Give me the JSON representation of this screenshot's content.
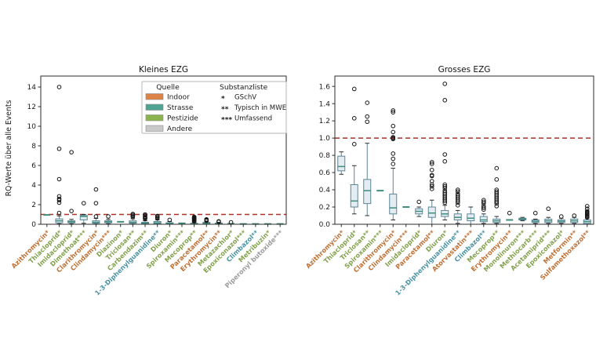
{
  "figure": {
    "background": "#ffffff"
  },
  "ylabel": "RQ-Werte über alle Events",
  "colors": {
    "refline": "#ab3226",
    "box_edge": "#5d8497",
    "box_fill": "#e3edf1",
    "box_median": "#3e8d7d",
    "outlier": "#161616",
    "axis": "#2b2b2b",
    "label_colors": {
      "indoor": "#bf7034",
      "strasse": "#4a93a3",
      "pestizide": "#83a14c",
      "andere": "#9b9b9b"
    }
  },
  "legend": {
    "quelle_title": "Quelle",
    "quelle_items": [
      {
        "label": "Indoor",
        "color": "#de8347",
        "source": "indoor"
      },
      {
        "label": "Strasse",
        "color": "#4fa392",
        "source": "strasse"
      },
      {
        "label": "Pestizide",
        "color": "#8bb44f",
        "source": "pestizide"
      },
      {
        "label": "Andere",
        "color": "#c9c9c9",
        "source": "andere"
      }
    ],
    "substanz_title": "Substanzliste",
    "substanz_items": [
      {
        "symbol": "*",
        "label": "GSchV"
      },
      {
        "symbol": "**",
        "label": "Typisch in MWE"
      },
      {
        "symbol": "***",
        "label": "Umfassend"
      }
    ]
  },
  "chart_data": [
    {
      "type": "box",
      "title": "Kleines EZG",
      "ylabel": "RQ-Werte über alle Events",
      "ylim": [
        0,
        15.12
      ],
      "yticks": [
        0,
        2,
        4,
        6,
        8,
        10,
        12,
        14
      ],
      "ytick_decimals": 0,
      "refline": 1.0,
      "grid": false,
      "items": [
        {
          "label": "Azithromycin*",
          "source": "indoor",
          "flat": 0.95,
          "outliers": []
        },
        {
          "label": "Thiacloprid*",
          "source": "pestizide",
          "box": {
            "lo": 0.05,
            "q1": 0.15,
            "med": 0.35,
            "q3": 0.55,
            "hi": 0.85
          },
          "outliers": [
            1.15,
            2.2,
            2.45,
            2.6,
            2.85,
            4.6,
            7.7,
            14.0
          ]
        },
        {
          "label": "Imidacloprid*",
          "source": "pestizide",
          "box": {
            "lo": 0.05,
            "q1": 0.15,
            "med": 0.25,
            "q3": 0.35,
            "hi": 0.5
          },
          "outliers": [
            1.35,
            7.35
          ]
        },
        {
          "label": "Dimethoat***",
          "source": "pestizide",
          "box": {
            "lo": 0.1,
            "q1": 0.45,
            "med": 0.8,
            "q3": 0.9,
            "hi": 1.0
          },
          "outliers": [
            2.15
          ]
        },
        {
          "label": "Clarithromycin*",
          "source": "indoor",
          "box": {
            "lo": 0.03,
            "q1": 0.1,
            "med": 0.2,
            "q3": 0.35,
            "hi": 0.6
          },
          "outliers": [
            0.8,
            2.15,
            3.55
          ]
        },
        {
          "label": "Clindamycin***",
          "source": "indoor",
          "box": {
            "lo": 0.05,
            "q1": 0.15,
            "med": 0.25,
            "q3": 0.35,
            "hi": 0.5
          },
          "outliers": [
            0.8
          ]
        },
        {
          "label": "Diazinon*",
          "source": "pestizide",
          "flat": 0.25,
          "outliers": []
        },
        {
          "label": "Triclosan**",
          "source": "pestizide",
          "box": {
            "lo": 0.03,
            "q1": 0.1,
            "med": 0.2,
            "q3": 0.35,
            "hi": 0.55
          },
          "outliers": [
            0.75,
            0.85,
            0.95,
            1.05
          ]
        },
        {
          "label": "Carbendazim**",
          "source": "pestizide",
          "box": {
            "lo": 0.02,
            "q1": 0.05,
            "med": 0.1,
            "q3": 0.2,
            "hi": 0.35
          },
          "outliers": [
            0.55,
            0.62,
            0.7,
            0.78,
            0.9,
            1.0
          ]
        },
        {
          "label": "1-3-Diphenylguanidine**",
          "source": "strasse",
          "box": {
            "lo": 0.02,
            "q1": 0.08,
            "med": 0.15,
            "q3": 0.28,
            "hi": 0.45
          },
          "outliers": [
            0.6,
            0.7,
            0.8,
            0.85
          ]
        },
        {
          "label": "Diuron*",
          "source": "pestizide",
          "box": {
            "lo": 0.02,
            "q1": 0.05,
            "med": 0.1,
            "q3": 0.16,
            "hi": 0.28
          },
          "outliers": [
            0.45
          ]
        },
        {
          "label": "Spiroxamin***",
          "source": "pestizide",
          "flat": 0.1,
          "outliers": []
        },
        {
          "label": "Mecoprop**",
          "source": "pestizide",
          "box": {
            "lo": 0.01,
            "q1": 0.03,
            "med": 0.06,
            "q3": 0.1,
            "hi": 0.18
          },
          "outliers": [
            0.3,
            0.35,
            0.4,
            0.45,
            0.5,
            0.55,
            0.6,
            0.65,
            0.7,
            0.75
          ]
        },
        {
          "label": "Paracetamol**",
          "source": "indoor",
          "box": {
            "lo": 0.02,
            "q1": 0.05,
            "med": 0.1,
            "q3": 0.2,
            "hi": 0.3
          },
          "outliers": [
            0.35,
            0.4,
            0.45,
            0.5
          ]
        },
        {
          "label": "Erythromycin**",
          "source": "indoor",
          "box": {
            "lo": 0.02,
            "q1": 0.04,
            "med": 0.08,
            "q3": 0.13,
            "hi": 0.2
          },
          "outliers": [
            0.25,
            0.3
          ]
        },
        {
          "label": "Metazachlor*",
          "source": "pestizide",
          "flat": 0.05,
          "outliers": [
            0.2
          ]
        },
        {
          "label": "Epoxiconazol***",
          "source": "pestizide",
          "flat": 0.03,
          "outliers": []
        },
        {
          "label": "Climbazol**",
          "source": "strasse",
          "flat": 0.03,
          "outliers": []
        },
        {
          "label": "Metribuzin*",
          "source": "pestizide",
          "flat": 0.03,
          "outliers": []
        },
        {
          "label": "Piperonyl butoxide***",
          "source": "andere",
          "flat": 0.03,
          "outliers": []
        }
      ]
    },
    {
      "type": "box",
      "title": "Grosses EZG",
      "ylabel": "",
      "ylim": [
        0,
        1.72
      ],
      "yticks": [
        0.0,
        0.2,
        0.4,
        0.6,
        0.8,
        1.0,
        1.2,
        1.4,
        1.6
      ],
      "ytick_decimals": 1,
      "refline": 1.0,
      "grid": false,
      "items": [
        {
          "label": "Azithromycin*",
          "source": "indoor",
          "box": {
            "lo": 0.58,
            "q1": 0.62,
            "med": 0.67,
            "q3": 0.79,
            "hi": 0.84
          },
          "outliers": []
        },
        {
          "label": "Thiacloprid*",
          "source": "pestizide",
          "box": {
            "lo": 0.12,
            "q1": 0.2,
            "med": 0.27,
            "q3": 0.46,
            "hi": 0.68
          },
          "outliers": [
            0.93,
            1.23,
            1.57
          ]
        },
        {
          "label": "Triclosan**",
          "source": "pestizide",
          "box": {
            "lo": 0.1,
            "q1": 0.24,
            "med": 0.39,
            "q3": 0.52,
            "hi": 0.94
          },
          "outliers": [
            1.19,
            1.25,
            1.41
          ]
        },
        {
          "label": "Spiroxamin***",
          "source": "pestizide",
          "flat": 0.39,
          "outliers": []
        },
        {
          "label": "Clarithromycin*",
          "source": "indoor",
          "box": {
            "lo": 0.05,
            "q1": 0.12,
            "med": 0.19,
            "q3": 0.35,
            "hi": 0.65
          },
          "outliers": [
            0.7,
            0.76,
            0.82,
            0.99,
            1.0,
            1.01,
            1.07,
            1.14,
            1.3,
            1.32
          ]
        },
        {
          "label": "Clindamycin***",
          "source": "indoor",
          "flat": 0.2,
          "outliers": []
        },
        {
          "label": "Imidacloprid*",
          "source": "pestizide",
          "box": {
            "lo": 0.09,
            "q1": 0.12,
            "med": 0.15,
            "q3": 0.18,
            "hi": 0.2
          },
          "outliers": [
            0.26
          ]
        },
        {
          "label": "Paracetamol**",
          "source": "indoor",
          "box": {
            "lo": 0.0,
            "q1": 0.08,
            "med": 0.13,
            "q3": 0.2,
            "hi": 0.28
          },
          "outliers": [
            0.41,
            0.44,
            0.46,
            0.5,
            0.56,
            0.57,
            0.63,
            0.7,
            0.72
          ]
        },
        {
          "label": "Diuron*",
          "source": "pestizide",
          "box": {
            "lo": 0.05,
            "q1": 0.09,
            "med": 0.12,
            "q3": 0.16,
            "hi": 0.22
          },
          "outliers": [
            0.25,
            0.27,
            0.29,
            0.31,
            0.33,
            0.35,
            0.37,
            0.39,
            0.42,
            0.44,
            0.46,
            0.73,
            0.81,
            1.44,
            1.63
          ]
        },
        {
          "label": "1-3-Diphenylguanidine**",
          "source": "strasse",
          "box": {
            "lo": 0.01,
            "q1": 0.05,
            "med": 0.08,
            "q3": 0.12,
            "hi": 0.16
          },
          "outliers": [
            0.22,
            0.25,
            0.27,
            0.29,
            0.31,
            0.33,
            0.35,
            0.38,
            0.4
          ]
        },
        {
          "label": "Atorvastatin***",
          "source": "indoor",
          "box": {
            "lo": 0.0,
            "q1": 0.04,
            "med": 0.07,
            "q3": 0.12,
            "hi": 0.2
          },
          "outliers": []
        },
        {
          "label": "Climbazol**",
          "source": "strasse",
          "box": {
            "lo": 0.01,
            "q1": 0.03,
            "med": 0.05,
            "q3": 0.09,
            "hi": 0.12
          },
          "outliers": [
            0.17,
            0.19,
            0.21,
            0.24,
            0.26,
            0.28
          ]
        },
        {
          "label": "Mecoprop**",
          "source": "pestizide",
          "box": {
            "lo": 0.01,
            "q1": 0.02,
            "med": 0.04,
            "q3": 0.06,
            "hi": 0.09
          },
          "outliers": [
            0.21,
            0.24,
            0.26,
            0.28,
            0.3,
            0.32,
            0.34,
            0.36,
            0.38,
            0.4,
            0.52,
            0.65
          ]
        },
        {
          "label": "Erythromycin**",
          "source": "indoor",
          "flat": 0.05,
          "outliers": [
            0.13
          ]
        },
        {
          "label": "Monolinuron***",
          "source": "pestizide",
          "box": {
            "lo": 0.04,
            "q1": 0.05,
            "med": 0.06,
            "q3": 0.07,
            "hi": 0.08
          },
          "outliers": []
        },
        {
          "label": "Methiocarb***",
          "source": "pestizide",
          "box": {
            "lo": 0.01,
            "q1": 0.02,
            "med": 0.035,
            "q3": 0.05,
            "hi": 0.06
          },
          "outliers": [
            0.13
          ]
        },
        {
          "label": "Acetamiprid***",
          "source": "pestizide",
          "box": {
            "lo": 0.01,
            "q1": 0.02,
            "med": 0.04,
            "q3": 0.06,
            "hi": 0.08
          },
          "outliers": [
            0.18
          ]
        },
        {
          "label": "Epoxiconazol*",
          "source": "pestizide",
          "box": {
            "lo": 0.01,
            "q1": 0.02,
            "med": 0.035,
            "q3": 0.05,
            "hi": 0.07
          },
          "outliers": [
            0.09
          ]
        },
        {
          "label": "Metformin**",
          "source": "indoor",
          "box": {
            "lo": 0.01,
            "q1": 0.02,
            "med": 0.04,
            "q3": 0.06,
            "hi": 0.08
          },
          "outliers": [
            0.1
          ]
        },
        {
          "label": "Sulfamethoxazol**",
          "source": "indoor",
          "box": {
            "lo": 0.0,
            "q1": 0.01,
            "med": 0.03,
            "q3": 0.05,
            "hi": 0.07
          },
          "outliers": [
            0.08,
            0.09,
            0.1,
            0.11,
            0.12,
            0.13,
            0.14,
            0.15,
            0.18,
            0.21
          ]
        }
      ]
    }
  ]
}
